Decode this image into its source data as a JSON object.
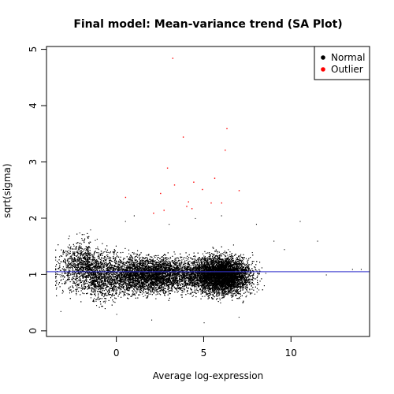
{
  "chart_data": {
    "type": "scatter",
    "title": "Final model: Mean-variance trend (SA Plot)",
    "xlabel": "Average log-expression",
    "ylabel": "sqrt(sigma)",
    "xlim": [
      -4.0,
      14.5
    ],
    "ylim": [
      -0.1,
      5.05
    ],
    "x_ticks": [
      0,
      5,
      10
    ],
    "y_ticks": [
      0,
      1,
      2,
      3,
      4,
      5
    ],
    "grid": false,
    "legend": {
      "position": "top-right",
      "entries": [
        {
          "label": "Normal",
          "color": "#000000",
          "marker": "circle"
        },
        {
          "label": "Outlier",
          "color": "#ff0000",
          "marker": "circle"
        }
      ]
    },
    "reference_line": {
      "orientation": "horizontal",
      "y": 1.05,
      "color": "#3333cc"
    },
    "series": [
      {
        "name": "Normal",
        "color": "#000000",
        "approx_point_count": 20000,
        "distribution_summary": {
          "x_range": [
            -3.5,
            14.0
          ],
          "y_range": [
            0.1,
            2.1
          ],
          "dense_core_x": [
            5.0,
            7.5
          ],
          "median_sqrt_sigma": 1.0
        },
        "points": [
          {
            "x": -3.2,
            "y": 0.35
          },
          {
            "x": -2.8,
            "y": 1.5
          },
          {
            "x": -2.0,
            "y": 1.65
          },
          {
            "x": -1.5,
            "y": 1.8
          },
          {
            "x": -1.0,
            "y": 1.2
          },
          {
            "x": 0.0,
            "y": 0.3
          },
          {
            "x": 0.5,
            "y": 1.95
          },
          {
            "x": 1.0,
            "y": 2.05
          },
          {
            "x": 2.0,
            "y": 0.2
          },
          {
            "x": 3.0,
            "y": 1.9
          },
          {
            "x": 4.5,
            "y": 2.0
          },
          {
            "x": 5.0,
            "y": 0.15
          },
          {
            "x": 6.0,
            "y": 2.05
          },
          {
            "x": 7.0,
            "y": 0.25
          },
          {
            "x": 8.0,
            "y": 1.9
          },
          {
            "x": 9.0,
            "y": 1.6
          },
          {
            "x": 9.6,
            "y": 1.45
          },
          {
            "x": 10.5,
            "y": 1.95
          },
          {
            "x": 11.5,
            "y": 1.6
          },
          {
            "x": 12.0,
            "y": 1.0
          },
          {
            "x": 13.5,
            "y": 1.1
          },
          {
            "x": 14.0,
            "y": 1.1
          }
        ]
      },
      {
        "name": "Outlier",
        "color": "#ff0000",
        "points": [
          {
            "x": 3.2,
            "y": 4.85
          },
          {
            "x": 3.8,
            "y": 3.45
          },
          {
            "x": 6.3,
            "y": 3.6
          },
          {
            "x": 6.2,
            "y": 3.22
          },
          {
            "x": 2.9,
            "y": 2.9
          },
          {
            "x": 5.6,
            "y": 2.72
          },
          {
            "x": 4.4,
            "y": 2.65
          },
          {
            "x": 3.3,
            "y": 2.6
          },
          {
            "x": 7.0,
            "y": 2.5
          },
          {
            "x": 4.9,
            "y": 2.52
          },
          {
            "x": 2.5,
            "y": 2.45
          },
          {
            "x": 0.5,
            "y": 2.38
          },
          {
            "x": 4.1,
            "y": 2.3
          },
          {
            "x": 4.0,
            "y": 2.22
          },
          {
            "x": 5.4,
            "y": 2.28
          },
          {
            "x": 2.7,
            "y": 2.15
          },
          {
            "x": 6.0,
            "y": 2.28
          },
          {
            "x": 2.1,
            "y": 2.1
          },
          {
            "x": 4.3,
            "y": 2.18
          }
        ]
      }
    ]
  }
}
